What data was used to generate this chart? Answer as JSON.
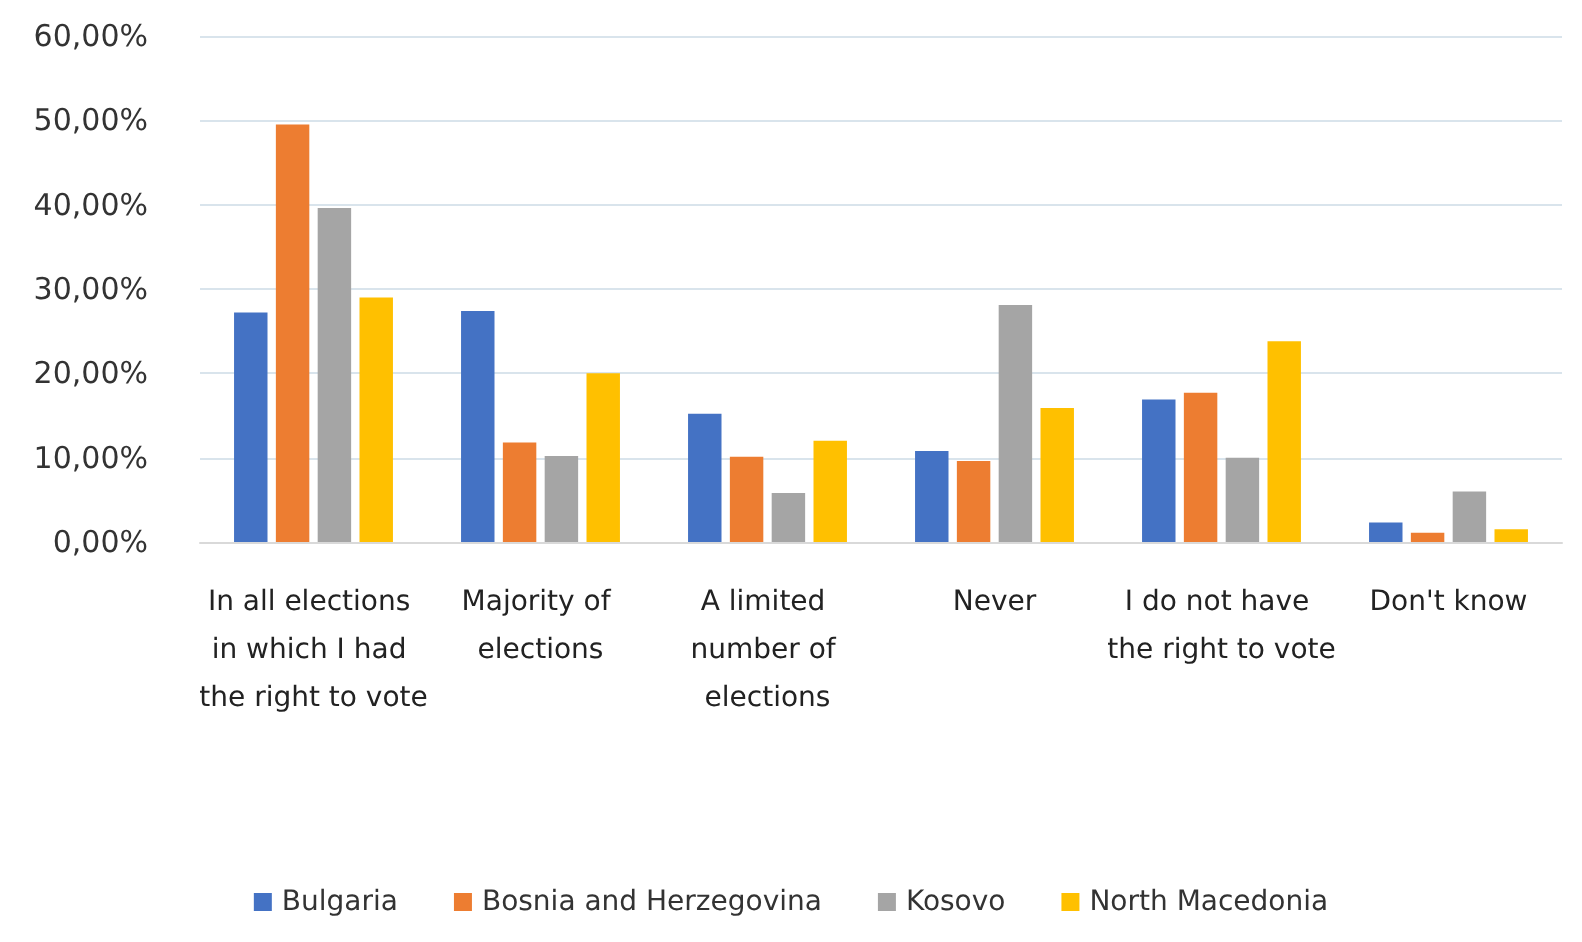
{
  "chart_data": {
    "type": "bar",
    "categories": [
      "In all elections in which I had the right to vote",
      "Majority of elections",
      "A limited number of elections",
      "Never",
      "I do not have the right to vote",
      "Don't know"
    ],
    "series": [
      {
        "name": "Bulgaria",
        "color": "#4472c4",
        "values": [
          27.2,
          27.4,
          15.2,
          10.8,
          16.9,
          2.3
        ]
      },
      {
        "name": "Bosnia and Herzegovina",
        "color": "#ed7d31",
        "values": [
          49.5,
          11.8,
          10.1,
          9.6,
          17.7,
          1.1
        ]
      },
      {
        "name": "Kosovo",
        "color": "#a5a5a5",
        "values": [
          39.6,
          10.2,
          5.8,
          28.1,
          10.0,
          6.0
        ]
      },
      {
        "name": "North Macedonia",
        "color": "#ffc000",
        "values": [
          29.0,
          20.0,
          12.0,
          15.9,
          23.8,
          1.5
        ]
      }
    ],
    "ylim": [
      0,
      60
    ],
    "yticks": [
      {
        "value": 0,
        "label": "0,00%"
      },
      {
        "value": 10,
        "label": "10,00%"
      },
      {
        "value": 20,
        "label": "20,00%"
      },
      {
        "value": 30,
        "label": "30,00%"
      },
      {
        "value": 40,
        "label": "40,00%"
      },
      {
        "value": 50,
        "label": "50,00%"
      },
      {
        "value": 60,
        "label": "60,00%"
      }
    ],
    "grid": "y",
    "legend": "bottom"
  }
}
